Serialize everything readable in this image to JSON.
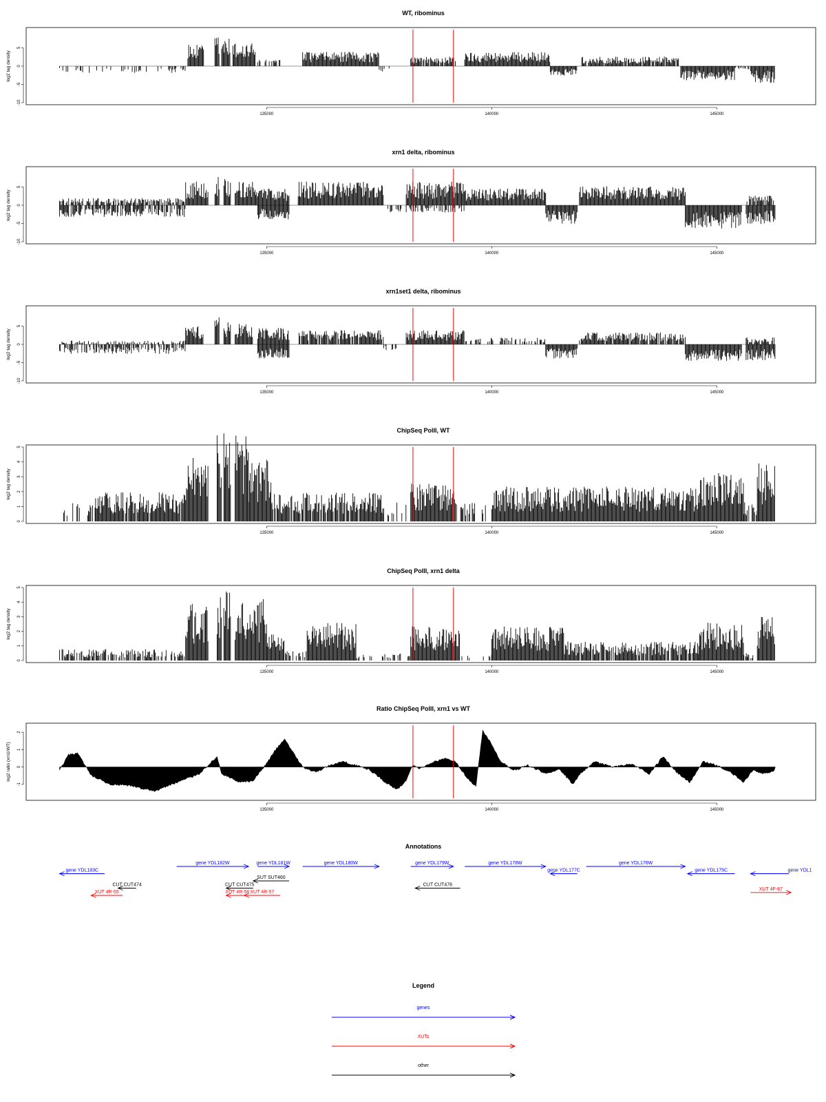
{
  "chart_data": [
    {
      "type": "bar",
      "title": "WT, ribominus",
      "ylabel": "log2 tag density",
      "ylim": [
        -10,
        10
      ],
      "yticks": [
        -10,
        -5,
        0,
        5
      ],
      "xlim": [
        130300,
        146600
      ],
      "xticks": [
        135000,
        140000,
        145000
      ],
      "markers": [
        138250,
        139150
      ],
      "marker_color": "#ff0000",
      "bar_color": "#000000",
      "segments": [
        {
          "x0": 130400,
          "x1": 133250,
          "value": -1.5,
          "density": 0.3
        },
        {
          "x0": 133250,
          "x1": 133600,
          "value": 4.5,
          "density": 1
        },
        {
          "x0": 133850,
          "x1": 133950,
          "value": 6.5,
          "density": 1
        },
        {
          "x0": 134000,
          "x1": 134200,
          "value": 6,
          "density": 1
        },
        {
          "x0": 134250,
          "x1": 134750,
          "value": 5,
          "density": 1
        },
        {
          "x0": 134800,
          "x1": 135300,
          "value": 1.5,
          "density": 0.5
        },
        {
          "x0": 135800,
          "x1": 137500,
          "value": 3,
          "density": 1
        },
        {
          "x0": 137500,
          "x1": 137800,
          "value": -1.2,
          "density": 0.4
        },
        {
          "x0": 138200,
          "x1": 139200,
          "value": 2,
          "density": 0.9
        },
        {
          "x0": 139400,
          "x1": 141300,
          "value": 3,
          "density": 1
        },
        {
          "x0": 141300,
          "x1": 141900,
          "value": -2,
          "density": 1
        },
        {
          "x0": 142000,
          "x1": 144150,
          "value": 2,
          "density": 0.9
        },
        {
          "x0": 144200,
          "x1": 145400,
          "value": -3,
          "density": 1
        },
        {
          "x0": 145400,
          "x1": 145750,
          "value": -0.8,
          "density": 0.3
        },
        {
          "x0": 145750,
          "x1": 146300,
          "value": -3.5,
          "density": 1
        }
      ]
    },
    {
      "type": "bar",
      "title": "xrn1 delta, ribominus",
      "ylabel": "log2 tag density",
      "ylim": [
        -10,
        10
      ],
      "yticks": [
        -10,
        -5,
        0,
        5
      ],
      "xlim": [
        130300,
        146600
      ],
      "xticks": [
        135000,
        140000,
        145000
      ],
      "markers": [
        138250,
        139150
      ],
      "marker_color": "#ff0000",
      "bar_color": "#000000",
      "segments": [
        {
          "x0": 130400,
          "x1": 133200,
          "value": 1.5,
          "density": 0.7
        },
        {
          "x0": 130400,
          "x1": 133200,
          "value": -2.5,
          "density": 0.7
        },
        {
          "x0": 133200,
          "x1": 133700,
          "value": 5,
          "density": 1
        },
        {
          "x0": 133850,
          "x1": 133950,
          "value": 6.5,
          "density": 1
        },
        {
          "x0": 134050,
          "x1": 134200,
          "value": 6,
          "density": 1
        },
        {
          "x0": 134300,
          "x1": 134800,
          "value": 5,
          "density": 1
        },
        {
          "x0": 134800,
          "x1": 135500,
          "value": 3.5,
          "density": 1
        },
        {
          "x0": 134800,
          "x1": 135500,
          "value": -3,
          "density": 1
        },
        {
          "x0": 135700,
          "x1": 137600,
          "value": 5,
          "density": 1
        },
        {
          "x0": 137600,
          "x1": 138000,
          "value": -1.5,
          "density": 0.6
        },
        {
          "x0": 138100,
          "x1": 139400,
          "value": 5,
          "density": 1
        },
        {
          "x0": 138100,
          "x1": 139400,
          "value": -1.5,
          "density": 0.5
        },
        {
          "x0": 139400,
          "x1": 141200,
          "value": 3.5,
          "density": 1
        },
        {
          "x0": 141200,
          "x1": 141900,
          "value": -4,
          "density": 1
        },
        {
          "x0": 141950,
          "x1": 144300,
          "value": 4,
          "density": 1
        },
        {
          "x0": 144300,
          "x1": 145550,
          "value": -5,
          "density": 1
        },
        {
          "x0": 145650,
          "x1": 146300,
          "value": 2,
          "density": 0.8
        },
        {
          "x0": 145650,
          "x1": 146300,
          "value": -4,
          "density": 1
        }
      ]
    },
    {
      "type": "bar",
      "title": "xrn1set1 delta, ribominus",
      "ylabel": "log2 tag density",
      "ylim": [
        -10,
        10
      ],
      "yticks": [
        -10,
        -5,
        0,
        5
      ],
      "xlim": [
        130300,
        146600
      ],
      "xticks": [
        135000,
        140000,
        145000
      ],
      "markers": [
        138250,
        139150
      ],
      "marker_color": "#ff0000",
      "bar_color": "#000000",
      "segments": [
        {
          "x0": 130400,
          "x1": 133200,
          "value": 0.8,
          "density": 0.3
        },
        {
          "x0": 130400,
          "x1": 133200,
          "value": -2,
          "density": 0.6
        },
        {
          "x0": 133200,
          "x1": 133600,
          "value": 4,
          "density": 1
        },
        {
          "x0": 133850,
          "x1": 133950,
          "value": 6,
          "density": 1
        },
        {
          "x0": 134050,
          "x1": 134200,
          "value": 5,
          "density": 1
        },
        {
          "x0": 134300,
          "x1": 134700,
          "value": 4.5,
          "density": 1
        },
        {
          "x0": 134800,
          "x1": 135500,
          "value": 3.5,
          "density": 1
        },
        {
          "x0": 134800,
          "x1": 135500,
          "value": -3,
          "density": 1
        },
        {
          "x0": 135700,
          "x1": 137600,
          "value": 3,
          "density": 0.9
        },
        {
          "x0": 137600,
          "x1": 137900,
          "value": -1.2,
          "density": 0.4
        },
        {
          "x0": 138100,
          "x1": 139400,
          "value": 3,
          "density": 1
        },
        {
          "x0": 139400,
          "x1": 141200,
          "value": 1.5,
          "density": 0.5
        },
        {
          "x0": 141200,
          "x1": 141900,
          "value": -3,
          "density": 1
        },
        {
          "x0": 141950,
          "x1": 144300,
          "value": 2.5,
          "density": 0.9
        },
        {
          "x0": 144300,
          "x1": 145550,
          "value": -3.5,
          "density": 1
        },
        {
          "x0": 145650,
          "x1": 146300,
          "value": 1.5,
          "density": 0.6
        },
        {
          "x0": 145650,
          "x1": 146300,
          "value": -3.5,
          "density": 1
        }
      ]
    },
    {
      "type": "bar",
      "title": "ChipSeq PolII, WT",
      "ylabel": "log2 tag density",
      "ylim": [
        0,
        5
      ],
      "yticks": [
        0,
        1,
        2,
        3,
        4,
        5
      ],
      "xlim": [
        130300,
        146600
      ],
      "xticks": [
        135000,
        140000,
        145000
      ],
      "markers": [
        138250,
        139150
      ],
      "marker_color": "#ff0000",
      "bar_color": "#000000",
      "segments": [
        {
          "x0": 130400,
          "x1": 131200,
          "value": 1,
          "density": 0.3
        },
        {
          "x0": 131200,
          "x1": 133200,
          "value": 1.5,
          "density": 0.9
        },
        {
          "x0": 133200,
          "x1": 133700,
          "value": 3.5,
          "density": 1
        },
        {
          "x0": 133900,
          "x1": 134000,
          "value": 4.8,
          "density": 1
        },
        {
          "x0": 134050,
          "x1": 134200,
          "value": 4.7,
          "density": 1
        },
        {
          "x0": 134300,
          "x1": 134600,
          "value": 4.5,
          "density": 1
        },
        {
          "x0": 134600,
          "x1": 135100,
          "value": 3.2,
          "density": 1
        },
        {
          "x0": 135100,
          "x1": 137600,
          "value": 1.5,
          "density": 0.9
        },
        {
          "x0": 137600,
          "x1": 138200,
          "value": 1,
          "density": 0.4
        },
        {
          "x0": 138200,
          "x1": 139200,
          "value": 2,
          "density": 1
        },
        {
          "x0": 139200,
          "x1": 140000,
          "value": 1,
          "density": 0.3
        },
        {
          "x0": 140000,
          "x1": 144600,
          "value": 1.8,
          "density": 1
        },
        {
          "x0": 144600,
          "x1": 145600,
          "value": 2.5,
          "density": 1
        },
        {
          "x0": 145600,
          "x1": 145900,
          "value": 1,
          "density": 0.6
        },
        {
          "x0": 145900,
          "x1": 146300,
          "value": 3.2,
          "density": 1
        }
      ]
    },
    {
      "type": "bar",
      "title": "ChipSeq PolII, xrn1 delta",
      "ylabel": "log2 tag density",
      "ylim": [
        0,
        5
      ],
      "yticks": [
        0,
        1,
        2,
        3,
        4,
        5
      ],
      "xlim": [
        130300,
        146600
      ],
      "xticks": [
        135000,
        140000,
        145000
      ],
      "markers": [
        138250,
        139150
      ],
      "marker_color": "#ff0000",
      "bar_color": "#000000",
      "segments": [
        {
          "x0": 130400,
          "x1": 133200,
          "value": 0.6,
          "density": 0.6
        },
        {
          "x0": 133200,
          "x1": 133700,
          "value": 3,
          "density": 1
        },
        {
          "x0": 133900,
          "x1": 134000,
          "value": 3.8,
          "density": 1
        },
        {
          "x0": 134050,
          "x1": 134200,
          "value": 4,
          "density": 1
        },
        {
          "x0": 134300,
          "x1": 135000,
          "value": 3.3,
          "density": 1
        },
        {
          "x0": 135000,
          "x1": 135400,
          "value": 1.5,
          "density": 1
        },
        {
          "x0": 135400,
          "x1": 135900,
          "value": 0.5,
          "density": 0.5
        },
        {
          "x0": 135900,
          "x1": 137000,
          "value": 2,
          "density": 1
        },
        {
          "x0": 137000,
          "x1": 138200,
          "value": 0.4,
          "density": 0.4
        },
        {
          "x0": 138200,
          "x1": 139300,
          "value": 1.8,
          "density": 1
        },
        {
          "x0": 139300,
          "x1": 140000,
          "value": 0.3,
          "density": 0.3
        },
        {
          "x0": 140000,
          "x1": 141600,
          "value": 1.8,
          "density": 1
        },
        {
          "x0": 141600,
          "x1": 144600,
          "value": 1,
          "density": 0.9
        },
        {
          "x0": 144600,
          "x1": 145600,
          "value": 2,
          "density": 1
        },
        {
          "x0": 145600,
          "x1": 145900,
          "value": 0.4,
          "density": 0.5
        },
        {
          "x0": 145900,
          "x1": 146300,
          "value": 2.3,
          "density": 1
        }
      ]
    },
    {
      "type": "area",
      "title": "Ratio ChipSeq PolII, xrn1 vs WT",
      "ylabel": "log2 ratio (xrn1/WT)",
      "ylim": [
        -1.8,
        2.4
      ],
      "yticks": [
        -1,
        0,
        1,
        2
      ],
      "xlim": [
        130300,
        146600
      ],
      "xticks": [
        135000,
        140000,
        145000
      ],
      "markers": [
        138250,
        139150
      ],
      "marker_color": "#ff0000",
      "fill_color": "#000000",
      "x": [
        130400,
        130600,
        130800,
        131100,
        131500,
        132000,
        132500,
        133000,
        133500,
        133900,
        134000,
        134400,
        134700,
        135000,
        135200,
        135400,
        135600,
        135800,
        136100,
        136400,
        136700,
        137000,
        137300,
        137700,
        137900,
        138100,
        138250,
        138400,
        138700,
        139000,
        139200,
        139500,
        139650,
        139800,
        139950,
        140200,
        140500,
        140800,
        141200,
        141500,
        141800,
        142000,
        142300,
        142700,
        143100,
        143500,
        143800,
        144100,
        144400,
        144700,
        145000,
        145300,
        145600,
        145800,
        146000,
        146300
      ],
      "y": [
        -0.2,
        0.7,
        0.8,
        -0.5,
        -1.0,
        -1.1,
        -1.4,
        -0.9,
        -0.4,
        0.6,
        -0.4,
        -0.9,
        -0.8,
        0.2,
        1.0,
        1.6,
        0.8,
        0.0,
        -0.3,
        0.1,
        0.3,
        0.1,
        -0.2,
        -1.0,
        -1.3,
        -0.8,
        0.1,
        -0.1,
        0.3,
        0.5,
        0.3,
        -0.8,
        -1.1,
        2.1,
        1.5,
        0.3,
        -0.2,
        0.1,
        -0.4,
        -0.1,
        -1.0,
        -0.3,
        0.3,
        0.0,
        0.2,
        -0.4,
        0.6,
        -0.3,
        -0.9,
        0.3,
        0.1,
        -0.3,
        -0.9,
        -0.2,
        -0.4,
        -0.2
      ]
    }
  ],
  "annotations": {
    "title": "Annotations",
    "xlim": [
      130300,
      146600
    ],
    "items": [
      {
        "label": "gene YDL183C",
        "x0": 130400,
        "x1": 131400,
        "dir": "left",
        "color": "#0000ff",
        "row": 2
      },
      {
        "label": "gene YDL182W",
        "x0": 133000,
        "x1": 134600,
        "dir": "right",
        "color": "#0000ff",
        "row": 1
      },
      {
        "label": "gene YDL181W",
        "x0": 134800,
        "x1": 135500,
        "dir": "right",
        "color": "#0000ff",
        "row": 1
      },
      {
        "label": "gene YDL180W",
        "x0": 135800,
        "x1": 137500,
        "dir": "right",
        "color": "#0000ff",
        "row": 1
      },
      {
        "label": "gene YDL179W",
        "x0": 138200,
        "x1": 139150,
        "dir": "right",
        "color": "#0000ff",
        "row": 1
      },
      {
        "label": "gene YDL178W",
        "x0": 139400,
        "x1": 141200,
        "dir": "right",
        "color": "#0000ff",
        "row": 1
      },
      {
        "label": "gene YDL177C",
        "x0": 141300,
        "x1": 141900,
        "dir": "left",
        "color": "#0000ff",
        "row": 2
      },
      {
        "label": "gene YDL176W",
        "x0": 142100,
        "x1": 144300,
        "dir": "right",
        "color": "#0000ff",
        "row": 1
      },
      {
        "label": "gene YDL175C",
        "x0": 144350,
        "x1": 145400,
        "dir": "left",
        "color": "#0000ff",
        "row": 2
      },
      {
        "label": "gene YDL1",
        "x0": 145750,
        "x1": 146600,
        "dir": "left",
        "color": "#0000ff",
        "row": 2
      },
      {
        "label": "SUT SUT460",
        "x0": 134700,
        "x1": 135500,
        "dir": "left",
        "color": "#000000",
        "row": 3
      },
      {
        "label": "CUT CUT474",
        "x0": 131700,
        "x1": 132100,
        "dir": "left",
        "color": "#000000",
        "row": 4
      },
      {
        "label": "CUT CUT475",
        "x0": 134100,
        "x1": 134700,
        "dir": "left",
        "color": "#000000",
        "row": 4
      },
      {
        "label": "CUT CUT476",
        "x0": 138300,
        "x1": 139300,
        "dir": "left",
        "color": "#000000",
        "row": 4
      },
      {
        "label": "XUT 4R-55",
        "x0": 131100,
        "x1": 131800,
        "dir": "left",
        "color": "#ff0000",
        "row": 5
      },
      {
        "label": "XUT 4R-56",
        "x0": 134100,
        "x1": 134600,
        "dir": "left",
        "color": "#ff0000",
        "row": 5
      },
      {
        "label": "XUT 4R-57",
        "x0": 134500,
        "x1": 135300,
        "dir": "left",
        "color": "#ff0000",
        "row": 5
      },
      {
        "label": "XUT 4F-87",
        "x0": 145750,
        "x1": 146650,
        "dir": "right",
        "color": "#ff0000",
        "row": 4.6
      }
    ]
  },
  "legend": {
    "title": "Legend",
    "items": [
      {
        "label": "genes",
        "color": "#0000ff"
      },
      {
        "label": "XUTs",
        "color": "#ff0000"
      },
      {
        "label": "other",
        "color": "#000000"
      }
    ]
  }
}
